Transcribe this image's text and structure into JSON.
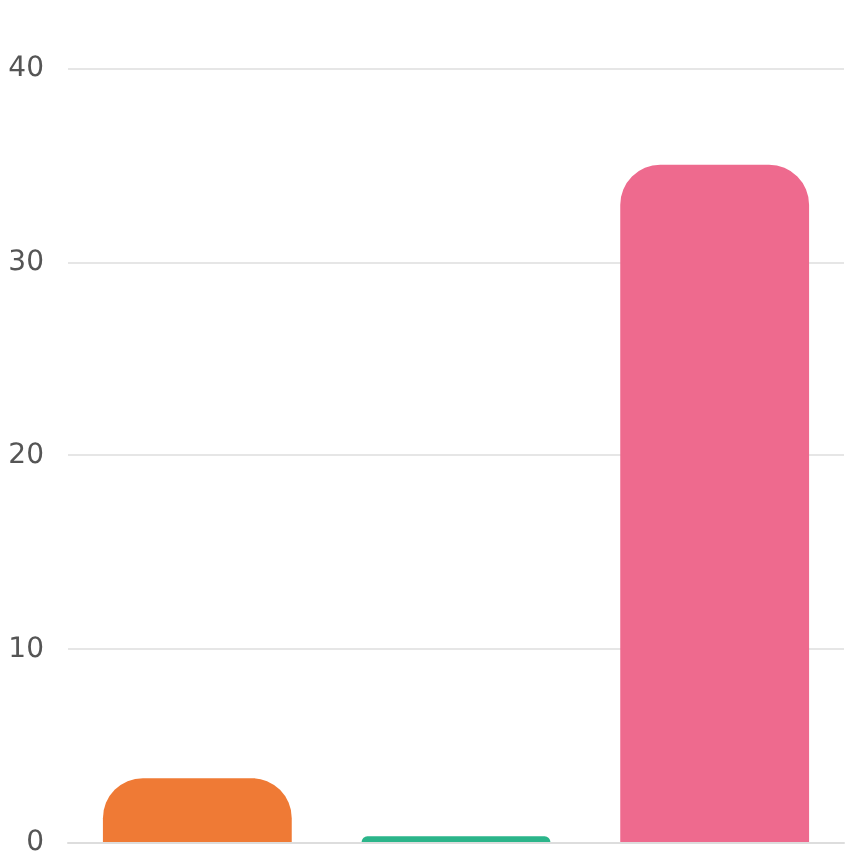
{
  "chart_data": {
    "type": "bar",
    "categories": [
      null,
      null,
      null
    ],
    "values": [
      3.3,
      0.3,
      35
    ],
    "colors": [
      "#ef7a35",
      "#2bb58a",
      "#ee6a8e"
    ],
    "ylim": [
      0,
      40
    ],
    "yticks": [
      0,
      10,
      20,
      30,
      40
    ],
    "grid": "y"
  }
}
